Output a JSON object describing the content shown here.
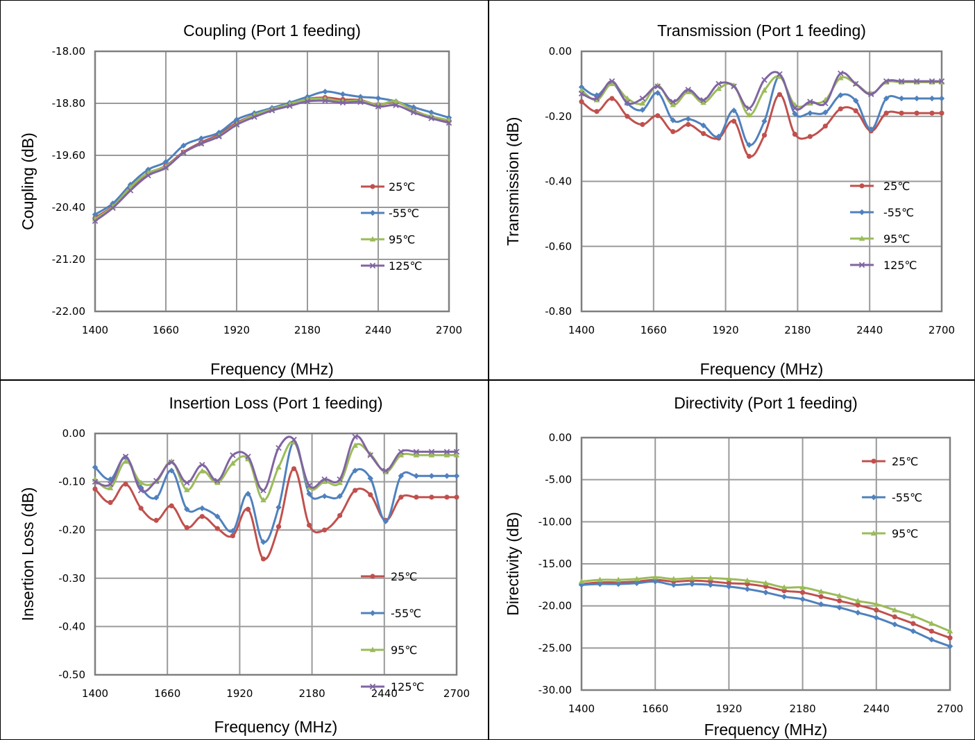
{
  "colors": {
    "red": "#C0504D",
    "blue": "#4F81BD",
    "green": "#9BBB59",
    "purple": "#8064A2",
    "grid": "#9a9a9a",
    "axis": "#7f7f7f"
  },
  "chart_data": [
    {
      "type": "line",
      "title": "Coupling (Port 1 feeding)",
      "xlabel": "Frequency (MHz)",
      "ylabel": "Coupling (dB)",
      "xlim": [
        1400,
        2700
      ],
      "ylim": [
        -22.0,
        -18.0
      ],
      "x_ticks": [
        "1400",
        "1660",
        "1920",
        "2180",
        "2440",
        "2700"
      ],
      "y_ticks": [
        "-18.00",
        "-18.80",
        "-19.60",
        "-20.40",
        "-21.20",
        "-22.00"
      ],
      "grid": true,
      "legend_position": "right",
      "x": [
        1400,
        1465,
        1530,
        1595,
        1660,
        1725,
        1790,
        1855,
        1920,
        1985,
        2050,
        2115,
        2180,
        2245,
        2310,
        2375,
        2440,
        2505,
        2570,
        2635,
        2700
      ],
      "series": [
        {
          "name": "25℃",
          "color": "#C0504D",
          "marker": "circle",
          "values": [
            -20.56,
            -20.38,
            -20.1,
            -19.88,
            -19.76,
            -19.55,
            -19.4,
            -19.28,
            -19.1,
            -18.98,
            -18.89,
            -18.8,
            -18.73,
            -18.71,
            -18.74,
            -18.75,
            -18.82,
            -18.78,
            -18.91,
            -19.01,
            -19.07
          ]
        },
        {
          "name": "-55℃",
          "color": "#4F81BD",
          "marker": "diamond",
          "values": [
            -20.51,
            -20.34,
            -20.05,
            -19.82,
            -19.7,
            -19.45,
            -19.34,
            -19.25,
            -19.05,
            -18.95,
            -18.87,
            -18.79,
            -18.7,
            -18.62,
            -18.66,
            -18.7,
            -18.72,
            -18.77,
            -18.86,
            -18.94,
            -19.02
          ]
        },
        {
          "name": "95℃",
          "color": "#9BBB59",
          "marker": "triangle",
          "values": [
            -20.58,
            -20.39,
            -20.09,
            -19.87,
            -19.77,
            -19.56,
            -19.42,
            -19.3,
            -19.12,
            -18.98,
            -18.89,
            -18.81,
            -18.74,
            -18.73,
            -18.77,
            -18.76,
            -18.82,
            -18.77,
            -18.92,
            -19.0,
            -19.06
          ]
        },
        {
          "name": "125℃",
          "color": "#8064A2",
          "marker": "x",
          "values": [
            -20.61,
            -20.41,
            -20.14,
            -19.91,
            -19.79,
            -19.56,
            -19.42,
            -19.31,
            -19.13,
            -19.01,
            -18.91,
            -18.84,
            -18.77,
            -18.76,
            -18.79,
            -18.78,
            -18.85,
            -18.83,
            -18.94,
            -19.03,
            -19.1
          ]
        }
      ]
    },
    {
      "type": "line",
      "title": "Transmission (Port 1 feeding)",
      "xlabel": "Frequency (MHz)",
      "ylabel": "Transmission (dB)",
      "xlim": [
        1400,
        2700
      ],
      "ylim": [
        -0.8,
        0.0
      ],
      "x_ticks": [
        "1400",
        "1660",
        "1920",
        "2180",
        "2440",
        "2700"
      ],
      "y_ticks": [
        "0.00",
        "-0.20",
        "-0.40",
        "-0.60",
        "-0.80"
      ],
      "grid": true,
      "legend_position": "right",
      "x": [
        1400,
        1455,
        1510,
        1565,
        1620,
        1675,
        1730,
        1785,
        1840,
        1895,
        1950,
        2005,
        2060,
        2115,
        2170,
        2225,
        2280,
        2335,
        2390,
        2445,
        2500,
        2555,
        2610,
        2665,
        2700
      ],
      "series": [
        {
          "name": "25℃",
          "color": "#C0504D",
          "marker": "circle",
          "values": [
            -0.155,
            -0.185,
            -0.145,
            -0.2,
            -0.225,
            -0.198,
            -0.247,
            -0.225,
            -0.253,
            -0.267,
            -0.215,
            -0.323,
            -0.258,
            -0.133,
            -0.255,
            -0.262,
            -0.23,
            -0.177,
            -0.183,
            -0.245,
            -0.19,
            -0.19,
            -0.19,
            -0.19,
            -0.19
          ]
        },
        {
          "name": "-55℃",
          "color": "#4F81BD",
          "marker": "diamond",
          "values": [
            -0.11,
            -0.135,
            -0.098,
            -0.16,
            -0.18,
            -0.128,
            -0.212,
            -0.208,
            -0.228,
            -0.262,
            -0.182,
            -0.288,
            -0.215,
            -0.075,
            -0.192,
            -0.19,
            -0.188,
            -0.135,
            -0.152,
            -0.24,
            -0.145,
            -0.145,
            -0.145,
            -0.145,
            -0.145
          ]
        },
        {
          "name": "95℃",
          "color": "#9BBB59",
          "marker": "triangle",
          "values": [
            -0.12,
            -0.15,
            -0.1,
            -0.145,
            -0.16,
            -0.105,
            -0.165,
            -0.125,
            -0.158,
            -0.115,
            -0.105,
            -0.196,
            -0.12,
            -0.078,
            -0.165,
            -0.16,
            -0.15,
            -0.082,
            -0.1,
            -0.13,
            -0.095,
            -0.095,
            -0.095,
            -0.095,
            -0.095
          ]
        },
        {
          "name": "125℃",
          "color": "#8064A2",
          "marker": "x",
          "values": [
            -0.13,
            -0.145,
            -0.092,
            -0.158,
            -0.145,
            -0.108,
            -0.155,
            -0.118,
            -0.15,
            -0.1,
            -0.108,
            -0.175,
            -0.088,
            -0.07,
            -0.175,
            -0.155,
            -0.16,
            -0.068,
            -0.1,
            -0.132,
            -0.092,
            -0.092,
            -0.092,
            -0.092,
            -0.092
          ]
        }
      ]
    },
    {
      "type": "line",
      "title": "Insertion Loss (Port 1 feeding)",
      "xlabel": "Frequency (MHz)",
      "ylabel": "Insertion Loss (dB)",
      "xlim": [
        1400,
        2700
      ],
      "ylim": [
        -0.5,
        0.0
      ],
      "x_ticks": [
        "1400",
        "1660",
        "1920",
        "2180",
        "2440",
        "2700"
      ],
      "y_ticks": [
        "0.00",
        "-0.10",
        "-0.20",
        "-0.30",
        "-0.40",
        "-0.50"
      ],
      "grid": true,
      "legend_position": "right",
      "x": [
        1400,
        1455,
        1510,
        1565,
        1620,
        1675,
        1730,
        1785,
        1840,
        1895,
        1950,
        2005,
        2060,
        2115,
        2170,
        2225,
        2280,
        2335,
        2390,
        2445,
        2500,
        2555,
        2610,
        2665,
        2700
      ],
      "series": [
        {
          "name": "25℃",
          "color": "#C0504D",
          "marker": "circle",
          "values": [
            -0.115,
            -0.143,
            -0.105,
            -0.155,
            -0.18,
            -0.15,
            -0.195,
            -0.172,
            -0.197,
            -0.212,
            -0.157,
            -0.26,
            -0.193,
            -0.073,
            -0.19,
            -0.2,
            -0.17,
            -0.118,
            -0.127,
            -0.18,
            -0.132,
            -0.132,
            -0.132,
            -0.132,
            -0.132
          ]
        },
        {
          "name": "-55℃",
          "color": "#4F81BD",
          "marker": "diamond",
          "values": [
            -0.07,
            -0.095,
            -0.05,
            -0.112,
            -0.133,
            -0.077,
            -0.157,
            -0.155,
            -0.172,
            -0.202,
            -0.125,
            -0.225,
            -0.153,
            -0.017,
            -0.125,
            -0.13,
            -0.13,
            -0.077,
            -0.093,
            -0.182,
            -0.088,
            -0.088,
            -0.088,
            -0.088,
            -0.088
          ]
        },
        {
          "name": "95℃",
          "color": "#9BBB59",
          "marker": "triangle",
          "values": [
            -0.095,
            -0.113,
            -0.058,
            -0.102,
            -0.1,
            -0.058,
            -0.117,
            -0.078,
            -0.102,
            -0.062,
            -0.053,
            -0.138,
            -0.07,
            -0.018,
            -0.112,
            -0.1,
            -0.102,
            -0.025,
            -0.043,
            -0.08,
            -0.045,
            -0.045,
            -0.045,
            -0.045,
            -0.045
          ]
        },
        {
          "name": "125℃",
          "color": "#8064A2",
          "marker": "x",
          "values": [
            -0.1,
            -0.105,
            -0.048,
            -0.118,
            -0.098,
            -0.06,
            -0.102,
            -0.065,
            -0.098,
            -0.045,
            -0.048,
            -0.118,
            -0.03,
            -0.013,
            -0.108,
            -0.095,
            -0.095,
            -0.007,
            -0.045,
            -0.077,
            -0.038,
            -0.038,
            -0.038,
            -0.038,
            -0.038
          ]
        }
      ]
    },
    {
      "type": "line",
      "title": "Directivity (Port 1 feeding)",
      "xlabel": "Frequency (MHz)",
      "ylabel": "Directivity (dB)",
      "xlim": [
        1400,
        2700
      ],
      "ylim": [
        -30.0,
        0.0
      ],
      "x_ticks": [
        "1400",
        "1660",
        "1920",
        "2180",
        "2440",
        "2700"
      ],
      "y_ticks": [
        "0.00",
        "-5.00",
        "-10.00",
        "-15.00",
        "-20.00",
        "-25.00",
        "-30.00"
      ],
      "grid": true,
      "legend_position": "top-right",
      "x": [
        1400,
        1465,
        1530,
        1595,
        1660,
        1725,
        1790,
        1855,
        1920,
        1985,
        2050,
        2115,
        2180,
        2245,
        2310,
        2375,
        2440,
        2505,
        2570,
        2635,
        2700
      ],
      "series": [
        {
          "name": "25℃",
          "color": "#C0504D",
          "marker": "circle",
          "values": [
            -17.4,
            -17.2,
            -17.2,
            -17.1,
            -16.9,
            -17.1,
            -17.0,
            -17.1,
            -17.3,
            -17.4,
            -17.7,
            -18.2,
            -18.4,
            -18.9,
            -19.4,
            -19.9,
            -20.5,
            -21.3,
            -22.1,
            -23.0,
            -23.8
          ]
        },
        {
          "name": "-55℃",
          "color": "#4F81BD",
          "marker": "diamond",
          "values": [
            -17.5,
            -17.4,
            -17.4,
            -17.3,
            -17.1,
            -17.5,
            -17.4,
            -17.5,
            -17.7,
            -18.0,
            -18.4,
            -18.9,
            -19.2,
            -19.8,
            -20.2,
            -20.8,
            -21.4,
            -22.2,
            -23.0,
            -24.0,
            -24.8
          ]
        },
        {
          "name": "95℃",
          "color": "#9BBB59",
          "marker": "triangle",
          "values": [
            -17.1,
            -16.9,
            -16.9,
            -16.8,
            -16.6,
            -16.8,
            -16.7,
            -16.7,
            -16.8,
            -17.0,
            -17.3,
            -17.8,
            -17.8,
            -18.3,
            -18.8,
            -19.4,
            -19.8,
            -20.5,
            -21.2,
            -22.1,
            -23.0
          ]
        }
      ]
    }
  ]
}
